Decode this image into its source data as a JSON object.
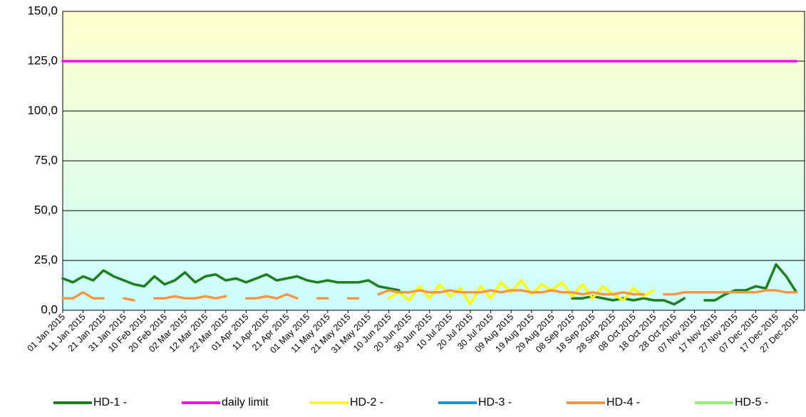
{
  "chart_data": {
    "type": "line",
    "x": [
      "01 Jan 2015",
      "06 Jan 2015",
      "11 Jan 2015",
      "16 Jan 2015",
      "21 Jan 2015",
      "26 Jan 2015",
      "31 Jan 2015",
      "05 Feb 2015",
      "10 Feb 2015",
      "15 Feb 2015",
      "20 Feb 2015",
      "25 Feb 2015",
      "02 Mar 2015",
      "07 Mar 2015",
      "12 Mar 2015",
      "17 Mar 2015",
      "22 Mar 2015",
      "27 Mar 2015",
      "01 Apr 2015",
      "06 Apr 2015",
      "11 Apr 2015",
      "16 Apr 2015",
      "21 Apr 2015",
      "26 Apr 2015",
      "01 May 2015",
      "06 May 2015",
      "11 May 2015",
      "16 May 2015",
      "21 May 2015",
      "26 May 2015",
      "31 May 2015",
      "05 Jun 2015",
      "10 Jun 2015",
      "15 Jun 2015",
      "20 Jun 2015",
      "25 Jun 2015",
      "30 Jun 2015",
      "05 Jul 2015",
      "10 Jul 2015",
      "15 Jul 2015",
      "20 Jul 2015",
      "25 Jul 2015",
      "30 Jul 2015",
      "04 Aug 2015",
      "09 Aug 2015",
      "14 Aug 2015",
      "19 Aug 2015",
      "24 Aug 2015",
      "29 Aug 2015",
      "03 Sep 2015",
      "08 Sep 2015",
      "13 Sep 2015",
      "18 Sep 2015",
      "23 Sep 2015",
      "28 Sep 2015",
      "03 Oct 2015",
      "08 Oct 2015",
      "13 Oct 2015",
      "18 Oct 2015",
      "23 Oct 2015",
      "28 Oct 2015",
      "02 Nov 2015",
      "07 Nov 2015",
      "12 Nov 2015",
      "17 Nov 2015",
      "22 Nov 2015",
      "27 Nov 2015",
      "02 Dec 2015",
      "07 Dec 2015",
      "12 Dec 2015",
      "17 Dec 2015",
      "22 Dec 2015",
      "27 Dec 2015"
    ],
    "xlim": [
      "01 Jan 2015",
      "31 Dec 2015"
    ],
    "xticks": [
      "01 Jan 2015",
      "11 Jan 2015",
      "21 Jan 2015",
      "31 Jan 2015",
      "10 Feb 2015",
      "20 Feb 2015",
      "02 Mar 2015",
      "12 Mar 2015",
      "22 Mar 2015",
      "01 Apr 2015",
      "11 Apr 2015",
      "21 Apr 2015",
      "01 May 2015",
      "11 May 2015",
      "21 May 2015",
      "31 May 2015",
      "10 Jun 2015",
      "20 Jun 2015",
      "30 Jun 2015",
      "10 Jul 2015",
      "20 Jul 2015",
      "30 Jul 2015",
      "09 Aug 2015",
      "19 Aug 2015",
      "29 Aug 2015",
      "08 Sep 2015",
      "18 Sep 2015",
      "28 Sep 2015",
      "08 Oct 2015",
      "18 Oct 2015",
      "28 Oct 2015",
      "07 Nov 2015",
      "17 Nov 2015",
      "27 Nov 2015",
      "07 Dec 2015",
      "17 Dec 2015",
      "27 Dec 2015"
    ],
    "ylim": [
      0,
      150
    ],
    "yticks": [
      {
        "value": 0,
        "label": "0,0"
      },
      {
        "value": 25,
        "label": "25,0"
      },
      {
        "value": 50,
        "label": "50,0"
      },
      {
        "value": 75,
        "label": "75,0"
      },
      {
        "value": 100,
        "label": "100,0"
      },
      {
        "value": 125,
        "label": "125,0"
      },
      {
        "value": 150,
        "label": "150,0"
      }
    ],
    "grid": true,
    "legend": "bottom",
    "series": [
      {
        "name": "HD-1 -",
        "color": "#1e7d1e",
        "values": [
          16,
          14,
          17,
          15,
          20,
          17,
          15,
          13,
          12,
          17,
          13,
          15,
          19,
          14,
          17,
          18,
          15,
          16,
          14,
          16,
          18,
          15,
          16,
          17,
          15,
          14,
          15,
          14,
          14,
          14,
          15,
          12,
          11,
          10,
          null,
          null,
          null,
          null,
          null,
          null,
          null,
          null,
          null,
          null,
          null,
          null,
          null,
          null,
          null,
          null,
          6,
          6,
          7,
          6,
          5,
          6,
          5,
          6,
          5,
          5,
          3,
          6,
          null,
          5,
          5,
          8,
          10,
          10,
          12,
          11,
          23,
          17,
          9
        ]
      },
      {
        "name": "daily limit",
        "color": "#ff00ff",
        "values": [
          125,
          125,
          125,
          125,
          125,
          125,
          125,
          125,
          125,
          125,
          125,
          125,
          125,
          125,
          125,
          125,
          125,
          125,
          125,
          125,
          125,
          125,
          125,
          125,
          125,
          125,
          125,
          125,
          125,
          125,
          125,
          125,
          125,
          125,
          125,
          125,
          125,
          125,
          125,
          125,
          125,
          125,
          125,
          125,
          125,
          125,
          125,
          125,
          125,
          125,
          125,
          125,
          125,
          125,
          125,
          125,
          125,
          125,
          125,
          125,
          125,
          125,
          125,
          125,
          125,
          125,
          125,
          125,
          125,
          125,
          125,
          125,
          125
        ]
      },
      {
        "name": "HD-2 -",
        "color": "#ffff00",
        "values": [
          null,
          null,
          null,
          null,
          null,
          null,
          null,
          null,
          null,
          null,
          null,
          null,
          null,
          null,
          null,
          null,
          null,
          null,
          null,
          null,
          null,
          null,
          null,
          null,
          null,
          null,
          null,
          null,
          null,
          null,
          null,
          null,
          6,
          9,
          5,
          12,
          6,
          13,
          7,
          11,
          3,
          12,
          6,
          14,
          9,
          15,
          8,
          13,
          10,
          14,
          7,
          13,
          6,
          12,
          8,
          5,
          11,
          7,
          10,
          null,
          null,
          null,
          null,
          null,
          null,
          null,
          null,
          null,
          null,
          null,
          null,
          null,
          null
        ]
      },
      {
        "name": "HD-3 -",
        "color": "#0099ee",
        "values": [
          null,
          null,
          null,
          null,
          null,
          null,
          null,
          null,
          null,
          null,
          null,
          null,
          null,
          null,
          null,
          null,
          null,
          null,
          null,
          null,
          null,
          null,
          null,
          null,
          null,
          null,
          null,
          null,
          null,
          null,
          null,
          null,
          null,
          null,
          null,
          null,
          null,
          null,
          null,
          null,
          null,
          null,
          null,
          null,
          null,
          null,
          null,
          null,
          null,
          null,
          null,
          null,
          null,
          null,
          null,
          null,
          null,
          null,
          null,
          null,
          null,
          null,
          null,
          null,
          null,
          null,
          null,
          null,
          null,
          null,
          null,
          null,
          null
        ]
      },
      {
        "name": "HD-4 -",
        "color": "#f79646",
        "values": [
          6,
          6,
          9,
          6,
          6,
          null,
          6,
          5,
          null,
          6,
          6,
          7,
          6,
          6,
          7,
          6,
          7,
          null,
          6,
          6,
          7,
          6,
          8,
          6,
          null,
          6,
          6,
          null,
          6,
          6,
          null,
          8,
          10,
          9,
          9,
          10,
          9,
          9,
          10,
          9,
          9,
          9,
          10,
          9,
          10,
          10,
          9,
          9,
          10,
          9,
          9,
          8,
          9,
          8,
          8,
          9,
          8,
          8,
          null,
          8,
          8,
          9,
          9,
          9,
          9,
          9,
          9,
          9,
          9,
          10,
          10,
          9,
          9
        ]
      },
      {
        "name": "HD-5 -",
        "color": "#90ee70",
        "values": [
          null,
          null,
          null,
          null,
          null,
          null,
          null,
          null,
          null,
          null,
          null,
          null,
          null,
          null,
          null,
          null,
          null,
          null,
          null,
          null,
          null,
          null,
          null,
          null,
          null,
          null,
          null,
          null,
          null,
          null,
          null,
          null,
          null,
          null,
          null,
          null,
          null,
          null,
          null,
          null,
          null,
          null,
          null,
          null,
          null,
          null,
          null,
          null,
          null,
          null,
          null,
          null,
          null,
          null,
          null,
          null,
          null,
          null,
          null,
          null,
          null,
          null,
          null,
          null,
          null,
          null,
          null,
          null,
          null,
          null,
          null,
          null,
          null
        ]
      }
    ]
  }
}
